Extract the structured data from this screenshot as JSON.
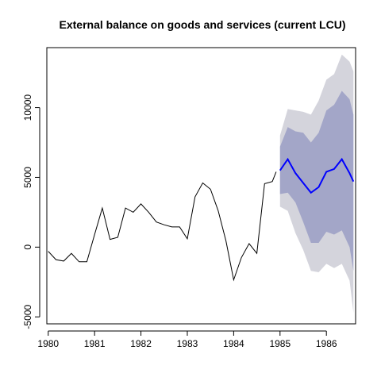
{
  "chart_data": {
    "type": "line",
    "title": "External balance on goods and services (current LCU)",
    "xlabel": "",
    "ylabel": "",
    "xlim": [
      1979.97,
      1986.63
    ],
    "ylim": [
      -5500,
      14300
    ],
    "x_ticks": [
      1980,
      1981,
      1982,
      1983,
      1984,
      1985,
      1986
    ],
    "y_ticks": [
      -5000,
      0,
      5000,
      10000
    ],
    "grid": false,
    "colors": {
      "history": "#000000",
      "forecast": "#0000ff",
      "band80": "#a3a6c8",
      "band95": "#d4d4dc"
    },
    "history": {
      "x": [
        1980.0,
        1980.1667,
        1980.3333,
        1980.5,
        1980.6667,
        1980.8333,
        1981.0,
        1981.1667,
        1981.3333,
        1981.5,
        1981.6667,
        1981.8333,
        1982.0,
        1982.1667,
        1982.3333,
        1982.5,
        1982.6667,
        1982.8333,
        1983.0,
        1983.1667,
        1983.3333,
        1983.5,
        1983.6667,
        1983.8333,
        1984.0,
        1984.1667,
        1984.3333,
        1984.5,
        1984.6667,
        1984.8333,
        1984.9167
      ],
      "y": [
        -300,
        -900,
        -1000,
        -450,
        -1050,
        -1050,
        900,
        2800,
        550,
        700,
        2800,
        2500,
        3100,
        2500,
        1800,
        1600,
        1450,
        1450,
        600,
        3600,
        4600,
        4150,
        2600,
        450,
        -2350,
        -750,
        250,
        -450,
        4550,
        4700,
        5400
      ]
    },
    "forecast": {
      "x": [
        1985.0,
        1985.1667,
        1985.3333,
        1985.5,
        1985.6667,
        1985.8333,
        1986.0,
        1986.1667,
        1986.3333,
        1986.5,
        1986.5833
      ],
      "y": [
        5500,
        6300,
        5300,
        4600,
        3900,
        4300,
        5400,
        5600,
        6300,
        5300,
        4700
      ],
      "lo80": [
        3800,
        3900,
        3200,
        1800,
        300,
        300,
        1100,
        900,
        1200,
        0,
        -1700
      ],
      "hi80": [
        7200,
        8600,
        8300,
        8200,
        7500,
        8200,
        9800,
        10200,
        11200,
        10600,
        9500
      ],
      "lo95": [
        2900,
        2600,
        1000,
        -200,
        -1700,
        -1800,
        -1200,
        -1500,
        -1200,
        -2400,
        -4700
      ],
      "hi95": [
        8000,
        9900,
        9800,
        9700,
        9500,
        10500,
        12000,
        12400,
        13800,
        13300,
        12600
      ]
    }
  }
}
